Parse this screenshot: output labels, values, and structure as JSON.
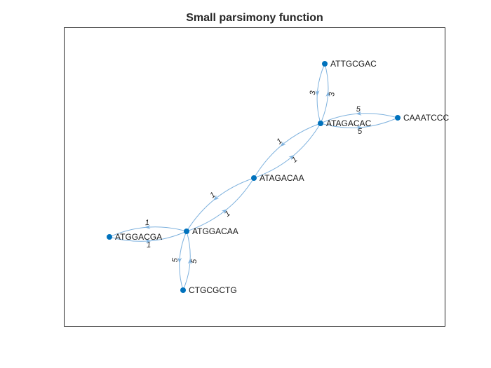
{
  "title": "Small parsimony function",
  "colors": {
    "node": "#0072BD",
    "edge": "#7FB2DE",
    "axes": "#262626"
  },
  "nodes": [
    {
      "id": "n_attgcgac",
      "label": "ATTGCGAC"
    },
    {
      "id": "n_caaatccc",
      "label": "CAAATCCC"
    },
    {
      "id": "n_atagacac",
      "label": "ATAGACAC"
    },
    {
      "id": "n_atagacaa",
      "label": "ATAGACAA"
    },
    {
      "id": "n_atggacaa",
      "label": "ATGGACAA"
    },
    {
      "id": "n_atggacga",
      "label": "ATGGACGA"
    },
    {
      "id": "n_ctgcgctg",
      "label": "CTGCGCTG"
    }
  ],
  "edges": [
    {
      "from": "n_atagacac",
      "to": "n_attgcgac",
      "weight": "3"
    },
    {
      "from": "n_attgcgac",
      "to": "n_atagacac",
      "weight": "3"
    },
    {
      "from": "n_caaatccc",
      "to": "n_atagacac",
      "weight": "5"
    },
    {
      "from": "n_atagacac",
      "to": "n_caaatccc",
      "weight": "5"
    },
    {
      "from": "n_atagacac",
      "to": "n_atagacaa",
      "weight": "1"
    },
    {
      "from": "n_atagacaa",
      "to": "n_atagacac",
      "weight": "1"
    },
    {
      "from": "n_atagacaa",
      "to": "n_atggacaa",
      "weight": "1"
    },
    {
      "from": "n_atggacaa",
      "to": "n_atagacaa",
      "weight": "1"
    },
    {
      "from": "n_atggacaa",
      "to": "n_atggacga",
      "weight": "1"
    },
    {
      "from": "n_atggacga",
      "to": "n_atggacaa",
      "weight": "1"
    },
    {
      "from": "n_atggacaa",
      "to": "n_ctgcgctg",
      "weight": "5"
    },
    {
      "from": "n_ctgcgctg",
      "to": "n_atggacaa",
      "weight": "5"
    }
  ]
}
